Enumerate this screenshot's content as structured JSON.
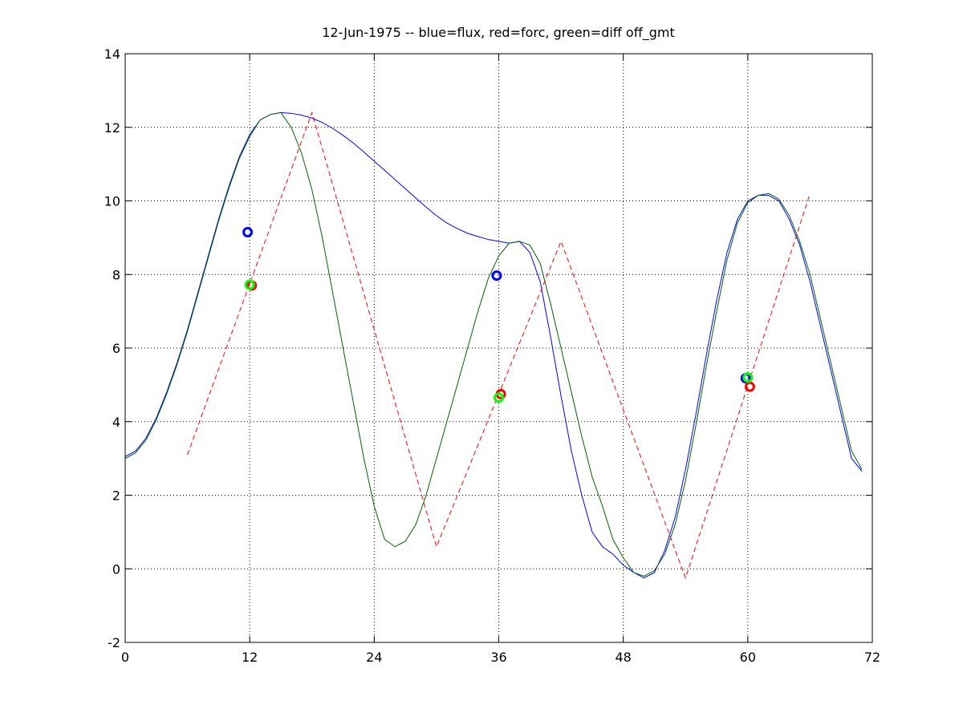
{
  "chart_data": {
    "type": "line",
    "title": "12-Jun-1975 -- blue=flux, red=forc, green=diff off_gmt",
    "xlim": [
      0,
      72
    ],
    "xticks": [
      0,
      12,
      24,
      36,
      48,
      60,
      72
    ],
    "ylim": [
      -2,
      14
    ],
    "yticks": [
      -2,
      0,
      2,
      4,
      6,
      8,
      10,
      12,
      14
    ],
    "grid": true,
    "series": [
      {
        "color": "#0000ff",
        "linestyle": "solid",
        "x": [
          0,
          1,
          2,
          3,
          4,
          5,
          6,
          7,
          8,
          9,
          10,
          11,
          12,
          13,
          14,
          15,
          16,
          17,
          18,
          19,
          20,
          21,
          22,
          23,
          24,
          25,
          26,
          27,
          28,
          29,
          30,
          31,
          32,
          33,
          34,
          35,
          36,
          37,
          38,
          39,
          40,
          41,
          42,
          43,
          44,
          45,
          46,
          47,
          48,
          49,
          50,
          51,
          52,
          53,
          54,
          55,
          56,
          57,
          58,
          59,
          60,
          61,
          62,
          63,
          64,
          65,
          66,
          67,
          68,
          69,
          70,
          71
        ],
        "values": [
          3.05,
          3.2,
          3.55,
          4.1,
          4.8,
          5.6,
          6.5,
          7.5,
          8.5,
          9.5,
          10.4,
          11.2,
          11.8,
          12.2,
          12.35,
          12.4,
          12.38,
          12.33,
          12.25,
          12.13,
          11.97,
          11.78,
          11.57,
          11.33,
          11.08,
          10.83,
          10.58,
          10.33,
          10.08,
          9.83,
          9.6,
          9.4,
          9.25,
          9.12,
          9.03,
          8.95,
          8.9,
          8.85,
          8.9,
          8.6,
          7.8,
          6.3,
          4.7,
          3.2,
          2.0,
          1.0,
          0.6,
          0.4,
          0.1,
          -0.1,
          -0.25,
          -0.1,
          0.5,
          1.4,
          2.7,
          4.2,
          5.8,
          7.3,
          8.6,
          9.5,
          10.0,
          10.15,
          10.15,
          10.0,
          9.5,
          8.8,
          7.8,
          6.6,
          5.4,
          4.2,
          3.0,
          2.65
        ]
      },
      {
        "color": "#006400",
        "linestyle": "solid",
        "x": [
          0,
          1,
          2,
          3,
          4,
          5,
          6,
          7,
          8,
          9,
          10,
          11,
          12,
          13,
          14,
          15,
          16,
          17,
          18,
          19,
          20,
          21,
          22,
          23,
          24,
          25,
          26,
          27,
          28,
          29,
          30,
          31,
          32,
          33,
          34,
          35,
          36,
          37,
          38,
          39,
          40,
          41,
          42,
          43,
          44,
          45,
          46,
          47,
          48,
          49,
          50,
          51,
          52,
          53,
          54,
          55,
          56,
          57,
          58,
          59,
          60,
          61,
          62,
          63,
          64,
          65,
          66,
          67,
          68,
          69,
          70,
          71
        ],
        "values": [
          3.0,
          3.15,
          3.5,
          4.05,
          4.75,
          5.55,
          6.45,
          7.45,
          8.45,
          9.45,
          10.35,
          11.15,
          11.75,
          12.2,
          12.35,
          12.4,
          12.0,
          11.3,
          10.3,
          9.0,
          7.5,
          6.0,
          4.5,
          3.0,
          1.7,
          0.8,
          0.6,
          0.75,
          1.2,
          2.0,
          3.0,
          4.0,
          5.0,
          6.0,
          7.0,
          7.9,
          8.5,
          8.85,
          8.9,
          8.8,
          8.3,
          7.2,
          6.0,
          4.8,
          3.6,
          2.5,
          1.7,
          0.8,
          0.3,
          -0.1,
          -0.2,
          -0.05,
          0.4,
          1.2,
          2.4,
          3.9,
          5.5,
          7.0,
          8.4,
          9.4,
          9.95,
          10.15,
          10.2,
          10.05,
          9.6,
          8.9,
          8.0,
          6.8,
          5.6,
          4.4,
          3.2,
          2.7
        ]
      },
      {
        "color": "#ff0000",
        "linestyle": "dashed",
        "x": [
          6,
          18,
          30,
          42,
          54,
          66
        ],
        "values": [
          3.1,
          12.4,
          0.6,
          8.9,
          -0.25,
          10.2
        ]
      },
      {
        "color": "#0000ff",
        "linestyle": "none",
        "marker": "circle",
        "x": [
          11.8,
          35.8,
          59.8
        ],
        "values": [
          9.15,
          7.97,
          5.18
        ]
      },
      {
        "color": "#ff0000",
        "linestyle": "none",
        "marker": "circle",
        "x": [
          12.2,
          36.2,
          60.2
        ],
        "values": [
          7.7,
          4.75,
          4.95
        ]
      },
      {
        "color": "#00ff00",
        "linestyle": "none",
        "marker": "circle",
        "x": [
          12.0,
          36.0,
          60.0
        ],
        "values": [
          7.72,
          4.65,
          5.2
        ]
      }
    ]
  }
}
